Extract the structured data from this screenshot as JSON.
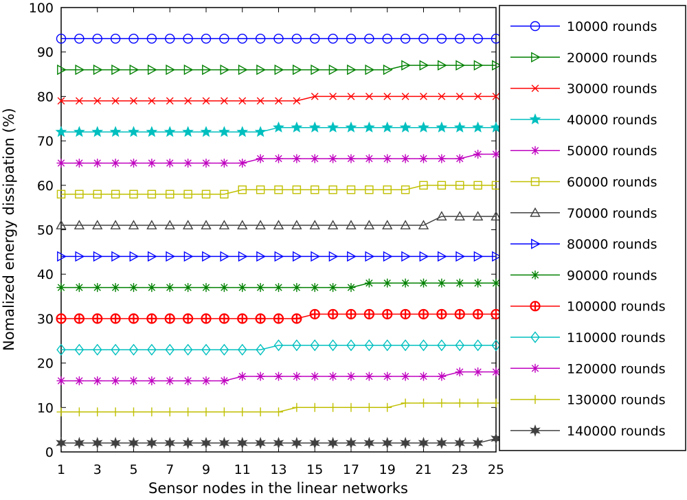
{
  "chart_data": {
    "type": "line",
    "xlabel": "Sensor nodes in the linear networks",
    "ylabel": "Nomalized energy dissipation (%)",
    "xlim": [
      1,
      25
    ],
    "ylim": [
      0,
      100
    ],
    "xticks": [
      1,
      3,
      5,
      7,
      9,
      11,
      13,
      15,
      17,
      19,
      21,
      23,
      25
    ],
    "yticks": [
      0,
      10,
      20,
      30,
      40,
      50,
      60,
      70,
      80,
      90,
      100
    ],
    "grid": false,
    "legend_position": "outside-right",
    "x": [
      1,
      2,
      3,
      4,
      5,
      6,
      7,
      8,
      9,
      10,
      11,
      12,
      13,
      14,
      15,
      16,
      17,
      18,
      19,
      20,
      21,
      22,
      23,
      24,
      25
    ],
    "series": [
      {
        "name": "10000 rounds",
        "color": "#0000ff",
        "marker": "circle",
        "values": [
          93,
          93,
          93,
          93,
          93,
          93,
          93,
          93,
          93,
          93,
          93,
          93,
          93,
          93,
          93,
          93,
          93,
          93,
          93,
          93,
          93,
          93,
          93,
          93,
          93
        ]
      },
      {
        "name": "20000 rounds",
        "color": "#008000",
        "marker": "triangle-right",
        "values": [
          86,
          86,
          86,
          86,
          86,
          86,
          86,
          86,
          86,
          86,
          86,
          86,
          86,
          86,
          86,
          86,
          86,
          86,
          86,
          87,
          87,
          87,
          87,
          87,
          87
        ]
      },
      {
        "name": "30000 rounds",
        "color": "#ff0000",
        "marker": "x",
        "values": [
          79,
          79,
          79,
          79,
          79,
          79,
          79,
          79,
          79,
          79,
          79,
          79,
          79,
          79,
          80,
          80,
          80,
          80,
          80,
          80,
          80,
          80,
          80,
          80,
          80
        ]
      },
      {
        "name": "40000 rounds",
        "color": "#00bfbf",
        "marker": "pentagram",
        "values": [
          72,
          72,
          72,
          72,
          72,
          72,
          72,
          72,
          72,
          72,
          72,
          72,
          73,
          73,
          73,
          73,
          73,
          73,
          73,
          73,
          73,
          73,
          73,
          73,
          73
        ]
      },
      {
        "name": "50000 rounds",
        "color": "#bf00bf",
        "marker": "asterisk",
        "values": [
          65,
          65,
          65,
          65,
          65,
          65,
          65,
          65,
          65,
          65,
          65,
          66,
          66,
          66,
          66,
          66,
          66,
          66,
          66,
          66,
          66,
          66,
          66,
          67,
          67
        ]
      },
      {
        "name": "60000 rounds",
        "color": "#bfbf00",
        "marker": "square",
        "values": [
          58,
          58,
          58,
          58,
          58,
          58,
          58,
          58,
          58,
          58,
          59,
          59,
          59,
          59,
          59,
          59,
          59,
          59,
          59,
          59,
          60,
          60,
          60,
          60,
          60
        ]
      },
      {
        "name": "70000 rounds",
        "color": "#404040",
        "marker": "triangle-up",
        "values": [
          51,
          51,
          51,
          51,
          51,
          51,
          51,
          51,
          51,
          51,
          51,
          51,
          51,
          51,
          51,
          51,
          51,
          51,
          51,
          51,
          51,
          53,
          53,
          53,
          53
        ]
      },
      {
        "name": "80000 rounds",
        "color": "#0000ff",
        "marker": "triangle-right",
        "values": [
          44,
          44,
          44,
          44,
          44,
          44,
          44,
          44,
          44,
          44,
          44,
          44,
          44,
          44,
          44,
          44,
          44,
          44,
          44,
          44,
          44,
          44,
          44,
          44,
          44
        ]
      },
      {
        "name": "90000 rounds",
        "color": "#008000",
        "marker": "asterisk",
        "values": [
          37,
          37,
          37,
          37,
          37,
          37,
          37,
          37,
          37,
          37,
          37,
          37,
          37,
          37,
          37,
          37,
          37,
          38,
          38,
          38,
          38,
          38,
          38,
          38,
          38
        ]
      },
      {
        "name": "100000 rounds",
        "color": "#ff0000",
        "marker": "circle-plus",
        "values": [
          30,
          30,
          30,
          30,
          30,
          30,
          30,
          30,
          30,
          30,
          30,
          30,
          30,
          30,
          31,
          31,
          31,
          31,
          31,
          31,
          31,
          31,
          31,
          31,
          31
        ]
      },
      {
        "name": "110000 rounds",
        "color": "#00bfbf",
        "marker": "diamond",
        "values": [
          23,
          23,
          23,
          23,
          23,
          23,
          23,
          23,
          23,
          23,
          23,
          23,
          24,
          24,
          24,
          24,
          24,
          24,
          24,
          24,
          24,
          24,
          24,
          24,
          24
        ]
      },
      {
        "name": "120000 rounds",
        "color": "#bf00bf",
        "marker": "asterisk",
        "values": [
          16,
          16,
          16,
          16,
          16,
          16,
          16,
          16,
          16,
          16,
          17,
          17,
          17,
          17,
          17,
          17,
          17,
          17,
          17,
          17,
          17,
          17,
          18,
          18,
          18
        ]
      },
      {
        "name": "130000 rounds",
        "color": "#bfbf00",
        "marker": "plus",
        "values": [
          9,
          9,
          9,
          9,
          9,
          9,
          9,
          9,
          9,
          9,
          9,
          9,
          9,
          10,
          10,
          10,
          10,
          10,
          10,
          11,
          11,
          11,
          11,
          11,
          11
        ]
      },
      {
        "name": "140000 rounds",
        "color": "#404040",
        "marker": "hexagram",
        "values": [
          2,
          2,
          2,
          2,
          2,
          2,
          2,
          2,
          2,
          2,
          2,
          2,
          2,
          2,
          2,
          2,
          2,
          2,
          2,
          2,
          2,
          2,
          2,
          2,
          3
        ]
      }
    ]
  }
}
